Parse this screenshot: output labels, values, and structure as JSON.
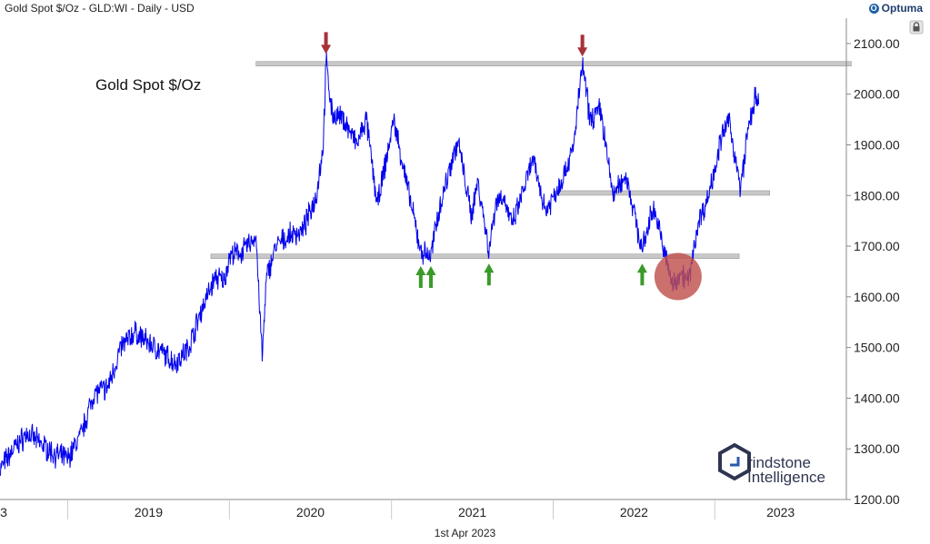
{
  "header": {
    "title": "Gold Spot $/Oz - GLD:WI - Daily - USD",
    "brand": "Optuma"
  },
  "footer": {
    "date": "1st Apr 2023"
  },
  "watermark": {
    "line1": "rindstone",
    "line2": "Intelligence"
  },
  "colors": {
    "price_line": "#0000ee",
    "level_band": "#c8c8c8",
    "arrow_down": "#a8313a",
    "arrow_up": "#3a9a2a",
    "highlight_circle": "#c0504d",
    "axis_text": "#222222",
    "watermark_dark": "#2f3550",
    "watermark_blue": "#2a5ba8"
  },
  "chart_data": {
    "type": "line",
    "title": "Gold Spot $/Oz",
    "ylim": [
      1200,
      2150
    ],
    "xlim": [
      "2018-08-01",
      "2023-10-25"
    ],
    "y_ticks": [
      1200,
      1300,
      1400,
      1500,
      1600,
      1700,
      1800,
      1900,
      2000,
      2100
    ],
    "y_tick_labels": [
      "1200.00",
      "1300.00",
      "1400.00",
      "1500.00",
      "1600.00",
      "1700.00",
      "1800.00",
      "1900.00",
      "2000.00",
      "2100.00"
    ],
    "x_year_labels": [
      {
        "label": "3",
        "x": "2018-07-20"
      },
      {
        "label": "2019",
        "x": "2019-01-01"
      },
      {
        "label": "2020",
        "x": "2020-01-01"
      },
      {
        "label": "2021",
        "x": "2021-01-01"
      },
      {
        "label": "2022",
        "x": "2022-01-01"
      },
      {
        "label": "2023",
        "x": "2023-01-01"
      }
    ],
    "grid": false,
    "series": [
      {
        "points": [
          [
            "2018-08-01",
            1260
          ],
          [
            "2018-09-01",
            1300
          ],
          [
            "2018-10-01",
            1330
          ],
          [
            "2018-11-01",
            1310
          ],
          [
            "2018-12-01",
            1290
          ],
          [
            "2019-01-01",
            1280
          ],
          [
            "2019-02-01",
            1330
          ],
          [
            "2019-03-01",
            1410
          ],
          [
            "2019-04-01",
            1420
          ],
          [
            "2019-05-01",
            1500
          ],
          [
            "2019-06-01",
            1530
          ],
          [
            "2019-07-01",
            1510
          ],
          [
            "2019-08-01",
            1490
          ],
          [
            "2019-09-01",
            1470
          ],
          [
            "2019-10-01",
            1500
          ],
          [
            "2019-11-01",
            1580
          ],
          [
            "2019-12-01",
            1640
          ],
          [
            "2019-12-20",
            1630
          ],
          [
            "2020-01-01",
            1680
          ],
          [
            "2020-02-01",
            1690
          ],
          [
            "2020-03-01",
            1720
          ],
          [
            "2020-03-15",
            1480
          ],
          [
            "2020-03-25",
            1640
          ],
          [
            "2020-04-15",
            1700
          ],
          [
            "2020-05-15",
            1720
          ],
          [
            "2020-06-15",
            1730
          ],
          [
            "2020-07-15",
            1800
          ],
          [
            "2020-07-31",
            1900
          ],
          [
            "2020-08-06",
            2065
          ],
          [
            "2020-08-20",
            1960
          ],
          [
            "2020-09-15",
            1950
          ],
          [
            "2020-10-15",
            1900
          ],
          [
            "2020-11-05",
            1950
          ],
          [
            "2020-11-30",
            1780
          ],
          [
            "2020-12-20",
            1870
          ],
          [
            "2021-01-06",
            1950
          ],
          [
            "2021-02-05",
            1820
          ],
          [
            "2021-03-08",
            1690
          ],
          [
            "2021-03-31",
            1680
          ],
          [
            "2021-04-15",
            1760
          ],
          [
            "2021-05-20",
            1880
          ],
          [
            "2021-06-01",
            1905
          ],
          [
            "2021-06-30",
            1760
          ],
          [
            "2021-07-15",
            1830
          ],
          [
            "2021-08-09",
            1690
          ],
          [
            "2021-08-25",
            1790
          ],
          [
            "2021-09-10",
            1800
          ],
          [
            "2021-09-30",
            1740
          ],
          [
            "2021-10-15",
            1780
          ],
          [
            "2021-11-16",
            1870
          ],
          [
            "2021-12-15",
            1770
          ],
          [
            "2022-01-15",
            1820
          ],
          [
            "2022-02-15",
            1890
          ],
          [
            "2022-03-08",
            2060
          ],
          [
            "2022-03-25",
            1950
          ],
          [
            "2022-04-18",
            1970
          ],
          [
            "2022-05-16",
            1800
          ],
          [
            "2022-06-15",
            1840
          ],
          [
            "2022-07-21",
            1690
          ],
          [
            "2022-08-15",
            1780
          ],
          [
            "2022-09-28",
            1620
          ],
          [
            "2022-10-15",
            1650
          ],
          [
            "2022-11-03",
            1630
          ],
          [
            "2022-11-25",
            1750
          ],
          [
            "2022-12-15",
            1790
          ],
          [
            "2023-01-15",
            1910
          ],
          [
            "2023-02-02",
            1950
          ],
          [
            "2023-02-28",
            1810
          ],
          [
            "2023-03-15",
            1920
          ],
          [
            "2023-04-01",
            1990
          ],
          [
            "2023-04-10",
            1980
          ]
        ]
      }
    ],
    "levels": [
      {
        "y": 2060,
        "from": "2020-03-01",
        "to": "2023-11-05"
      },
      {
        "y": 1805,
        "from": "2022-01-05",
        "to": "2023-05-05"
      },
      {
        "y": 1680,
        "from": "2019-11-20",
        "to": "2023-02-25"
      }
    ],
    "arrows": [
      {
        "dir": "down",
        "x": "2020-08-06",
        "y": 2065
      },
      {
        "dir": "down",
        "x": "2022-03-08",
        "y": 2060
      },
      {
        "dir": "up",
        "x": "2021-03-08",
        "y": 1675
      },
      {
        "dir": "up",
        "x": "2021-03-31",
        "y": 1675
      },
      {
        "dir": "up",
        "x": "2021-08-09",
        "y": 1680
      },
      {
        "dir": "up",
        "x": "2022-07-21",
        "y": 1680
      }
    ],
    "highlight": {
      "x": "2022-10-10",
      "y": 1640
    }
  }
}
